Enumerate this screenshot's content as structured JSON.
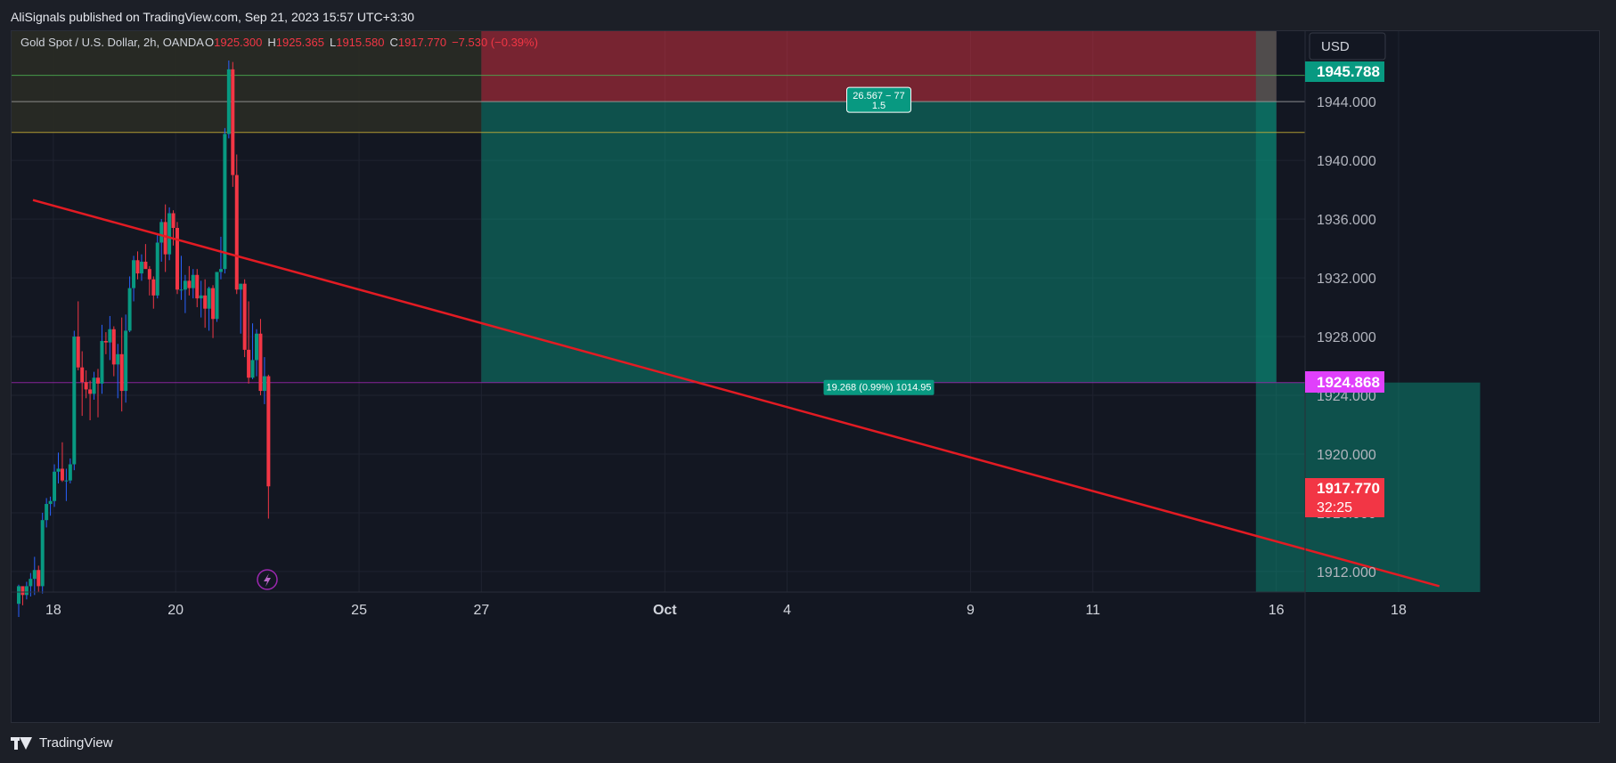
{
  "header": {
    "text": "AliSignals published on TradingView.com, Sep 21, 2023 15:57 UTC+3:30"
  },
  "footer": {
    "brand": "TradingView"
  },
  "legend": {
    "symbol": "Gold Spot / U.S. Dollar, 2h, OANDA",
    "o_label": "O",
    "o_value": "1925.300",
    "h_label": "H",
    "h_value": "1925.365",
    "l_label": "L",
    "l_value": "1915.580",
    "c_label": "C",
    "c_value": "1917.770",
    "change": "−7.530 (−0.39%)"
  },
  "currency": "USD",
  "price_tags": {
    "tp": {
      "value": "1945.788",
      "color": "#089981"
    },
    "entry": {
      "value": "1924.868",
      "color": "#e040fb"
    },
    "last": {
      "value": "1917.770",
      "countdown": "32:25",
      "color": "#f23645"
    }
  },
  "position_labels": {
    "risk_line1": "26.567 − 77",
    "risk_line2": "1.5",
    "entry_label": "19.268 (0.99%) 1014.95"
  },
  "colors": {
    "up": "#089981",
    "down": "#f23645",
    "wick_up": "#2962ff",
    "trend": "#e31b23",
    "background": "#131722",
    "grid": "#1f2330",
    "axis_text": "#b2b5be"
  },
  "chart_data": {
    "type": "candlestick",
    "symbol": "XAUUSD",
    "timeframe": "2h",
    "y_ticks": [
      1912,
      1916,
      1920,
      1924,
      1928,
      1932,
      1936,
      1940,
      1944
    ],
    "y_tick_labels": [
      "1912.000",
      "1916.000",
      "1920.000",
      "1924.000",
      "1928.000",
      "1932.000",
      "1936.000",
      "1940.000",
      "1944.000"
    ],
    "ylim": [
      1910.6,
      1948.8
    ],
    "x_ticks": [
      {
        "label": "18",
        "t": 4
      },
      {
        "label": "20",
        "t": 28
      },
      {
        "label": "25",
        "t": 64
      },
      {
        "label": "27",
        "t": 88
      },
      {
        "label": "Oct",
        "t": 124
      },
      {
        "label": "4",
        "t": 148
      },
      {
        "label": "9",
        "t": 184
      },
      {
        "label": "11",
        "t": 208
      },
      {
        "label": "16",
        "t": 244
      },
      {
        "label": "18",
        "t": 268
      }
    ],
    "ohlc": [
      [
        1909.8,
        1911.1,
        1908.9,
        1911.0
      ],
      [
        1911.0,
        1910.9,
        1909.7,
        1910.4
      ],
      [
        1910.4,
        1911.3,
        1910.1,
        1911.0
      ],
      [
        1911.0,
        1911.9,
        1910.3,
        1911.5
      ],
      [
        1911.5,
        1913.0,
        1910.4,
        1912.1
      ],
      [
        1912.1,
        1912.4,
        1910.6,
        1911.0
      ],
      [
        1911.0,
        1916.0,
        1910.5,
        1915.5
      ],
      [
        1915.5,
        1917.0,
        1915.0,
        1916.6
      ],
      [
        1916.6,
        1917.1,
        1915.8,
        1916.8
      ],
      [
        1916.8,
        1919.3,
        1916.4,
        1918.8
      ],
      [
        1918.8,
        1920.1,
        1918.0,
        1919.0
      ],
      [
        1919.0,
        1920.8,
        1918.1,
        1918.2
      ],
      [
        1918.2,
        1919.0,
        1916.8,
        1918.2
      ],
      [
        1918.2,
        1919.7,
        1918.0,
        1919.3
      ],
      [
        1919.3,
        1928.4,
        1918.9,
        1928.0
      ],
      [
        1928.0,
        1930.4,
        1925.7,
        1925.9
      ],
      [
        1925.9,
        1927.0,
        1922.6,
        1924.9
      ],
      [
        1924.9,
        1925.7,
        1923.8,
        1924.4
      ],
      [
        1924.4,
        1925.0,
        1922.3,
        1924.1
      ],
      [
        1924.1,
        1925.6,
        1923.7,
        1925.2
      ],
      [
        1925.2,
        1925.8,
        1922.5,
        1924.8
      ],
      [
        1924.8,
        1928.8,
        1924.1,
        1927.7
      ],
      [
        1927.7,
        1928.3,
        1926.8,
        1927.6
      ],
      [
        1927.6,
        1929.4,
        1926.4,
        1928.5
      ],
      [
        1928.5,
        1928.7,
        1925.3,
        1926.1
      ],
      [
        1926.1,
        1927.5,
        1923.8,
        1926.8
      ],
      [
        1926.8,
        1929.3,
        1922.9,
        1924.3
      ],
      [
        1924.3,
        1929.5,
        1923.5,
        1928.4
      ],
      [
        1928.4,
        1932.1,
        1928.3,
        1931.3
      ],
      [
        1931.3,
        1933.5,
        1930.4,
        1933.2
      ],
      [
        1933.2,
        1933.8,
        1931.9,
        1932.3
      ],
      [
        1932.3,
        1933.6,
        1931.8,
        1933.1
      ],
      [
        1933.1,
        1934.3,
        1932.7,
        1932.6
      ],
      [
        1932.6,
        1932.8,
        1930.8,
        1931.9
      ],
      [
        1931.9,
        1932.1,
        1929.9,
        1930.8
      ],
      [
        1930.8,
        1935.0,
        1930.6,
        1934.4
      ],
      [
        1934.4,
        1936.0,
        1933.1,
        1935.8
      ],
      [
        1935.8,
        1937.0,
        1932.4,
        1933.6
      ],
      [
        1933.6,
        1936.8,
        1933.2,
        1936.4
      ],
      [
        1936.4,
        1936.6,
        1934.2,
        1935.4
      ],
      [
        1935.4,
        1935.8,
        1930.9,
        1931.2
      ],
      [
        1931.2,
        1933.5,
        1930.5,
        1931.2
      ],
      [
        1931.2,
        1932.2,
        1929.6,
        1931.8
      ],
      [
        1931.8,
        1932.8,
        1930.8,
        1931.3
      ],
      [
        1931.3,
        1932.6,
        1930.6,
        1932.2
      ],
      [
        1932.2,
        1932.6,
        1930.0,
        1930.6
      ],
      [
        1930.6,
        1931.8,
        1929.3,
        1930.8
      ],
      [
        1930.8,
        1931.9,
        1928.6,
        1929.9
      ],
      [
        1929.9,
        1931.4,
        1928.4,
        1931.3
      ],
      [
        1931.3,
        1931.5,
        1927.9,
        1929.2
      ],
      [
        1929.2,
        1932.1,
        1929.0,
        1932.4
      ],
      [
        1932.4,
        1934.8,
        1931.9,
        1932.6
      ],
      [
        1932.6,
        1942.2,
        1932.3,
        1941.8
      ],
      [
        1941.8,
        1946.8,
        1941.5,
        1946.2
      ],
      [
        1946.2,
        1946.7,
        1938.2,
        1939.0
      ],
      [
        1939.0,
        1940.4,
        1930.9,
        1931.2
      ],
      [
        1931.2,
        1931.6,
        1928.2,
        1931.6
      ],
      [
        1931.6,
        1931.9,
        1926.6,
        1927.1
      ],
      [
        1927.1,
        1930.4,
        1924.8,
        1925.2
      ],
      [
        1925.2,
        1928.9,
        1925.1,
        1926.4
      ],
      [
        1926.4,
        1928.5,
        1925.3,
        1928.2
      ],
      [
        1928.2,
        1929.2,
        1924.0,
        1924.3
      ],
      [
        1924.3,
        1926.6,
        1923.4,
        1925.3
      ],
      [
        1925.3,
        1925.4,
        1915.6,
        1917.8
      ]
    ],
    "trendline": {
      "from": {
        "t": 0,
        "price": 1937.3
      },
      "to": {
        "t": 276,
        "price": 1911.0
      },
      "color": "#e31b23"
    },
    "horizontal_lines": [
      {
        "price": 1945.788,
        "color": "#4caf50"
      },
      {
        "price": 1944.0,
        "color": "#9e9e9e"
      },
      {
        "price": 1941.9,
        "color": "#c9b037"
      },
      {
        "price": 1924.868,
        "color": "#9c27b0"
      }
    ],
    "short_position_1": {
      "t_start": 88,
      "t_end": 244,
      "entry": 1924.868,
      "stop": 1948.8,
      "target": 1944.0
    },
    "short_position_2": {
      "t_start": 240,
      "t_end": 284,
      "entry": 1924.868,
      "target": 1910.6
    }
  }
}
